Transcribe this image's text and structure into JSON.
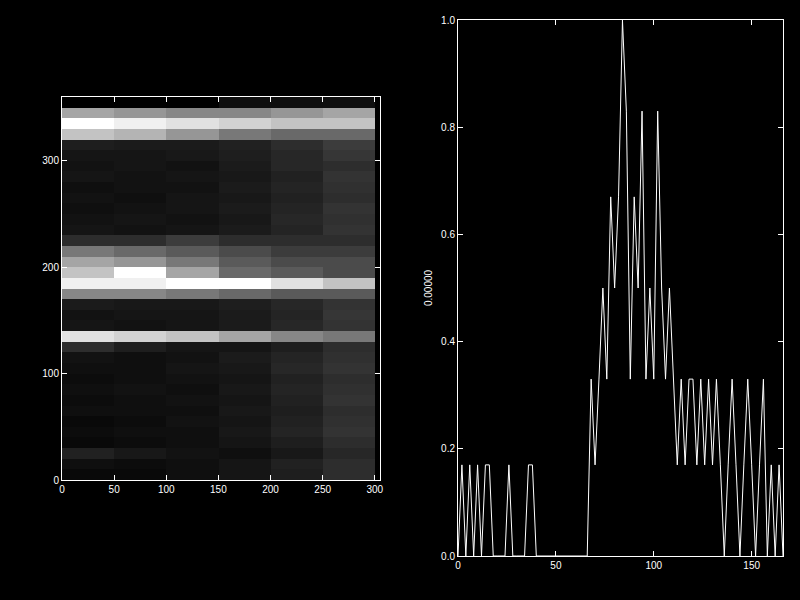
{
  "chart_data": [
    {
      "type": "heatmap",
      "x": [
        25,
        75,
        125,
        175,
        225,
        275
      ],
      "y": [
        5,
        15,
        25,
        35,
        45,
        55,
        65,
        75,
        85,
        95,
        105,
        115,
        125,
        135,
        145,
        155,
        165,
        175,
        185,
        195,
        205,
        215,
        225,
        235,
        245,
        255,
        265,
        275,
        285,
        295,
        305,
        315,
        325,
        335,
        345,
        355
      ],
      "z": [
        [
          0.08,
          0.08,
          0.1,
          0.12,
          0.15,
          0.2
        ],
        [
          0.1,
          0.09,
          0.1,
          0.12,
          0.16,
          0.2
        ],
        [
          0.16,
          0.13,
          0.11,
          0.1,
          0.13,
          0.18
        ],
        [
          0.08,
          0.09,
          0.1,
          0.12,
          0.15,
          0.2
        ],
        [
          0.09,
          0.1,
          0.1,
          0.13,
          0.17,
          0.22
        ],
        [
          0.08,
          0.09,
          0.11,
          0.12,
          0.16,
          0.21
        ],
        [
          0.1,
          0.1,
          0.1,
          0.13,
          0.15,
          0.2
        ],
        [
          0.09,
          0.1,
          0.11,
          0.12,
          0.16,
          0.22
        ],
        [
          0.1,
          0.11,
          0.1,
          0.13,
          0.17,
          0.21
        ],
        [
          0.09,
          0.1,
          0.11,
          0.12,
          0.16,
          0.2
        ],
        [
          0.1,
          0.1,
          0.12,
          0.13,
          0.18,
          0.22
        ],
        [
          0.11,
          0.1,
          0.11,
          0.14,
          0.17,
          0.21
        ],
        [
          0.2,
          0.15,
          0.12,
          0.12,
          0.15,
          0.2
        ],
        [
          0.8,
          0.75,
          0.7,
          0.6,
          0.5,
          0.45
        ],
        [
          0.12,
          0.11,
          0.12,
          0.14,
          0.18,
          0.22
        ],
        [
          0.11,
          0.12,
          0.12,
          0.14,
          0.17,
          0.23
        ],
        [
          0.14,
          0.13,
          0.13,
          0.15,
          0.18,
          0.22
        ],
        [
          0.5,
          0.5,
          0.45,
          0.4,
          0.35,
          0.35
        ],
        [
          0.85,
          0.85,
          0.9,
          0.9,
          0.8,
          0.7
        ],
        [
          0.7,
          0.9,
          0.6,
          0.4,
          0.35,
          0.3
        ],
        [
          0.6,
          0.55,
          0.45,
          0.35,
          0.3,
          0.3
        ],
        [
          0.45,
          0.4,
          0.35,
          0.3,
          0.25,
          0.25
        ],
        [
          0.2,
          0.2,
          0.25,
          0.2,
          0.2,
          0.2
        ],
        [
          0.12,
          0.11,
          0.12,
          0.14,
          0.17,
          0.22
        ],
        [
          0.11,
          0.12,
          0.11,
          0.13,
          0.18,
          0.21
        ],
        [
          0.1,
          0.11,
          0.12,
          0.14,
          0.17,
          0.22
        ],
        [
          0.11,
          0.1,
          0.12,
          0.13,
          0.16,
          0.2
        ],
        [
          0.1,
          0.11,
          0.11,
          0.14,
          0.17,
          0.21
        ],
        [
          0.12,
          0.11,
          0.12,
          0.13,
          0.16,
          0.22
        ],
        [
          0.11,
          0.12,
          0.11,
          0.14,
          0.18,
          0.2
        ],
        [
          0.12,
          0.12,
          0.13,
          0.15,
          0.18,
          0.23
        ],
        [
          0.15,
          0.14,
          0.14,
          0.16,
          0.2,
          0.25
        ],
        [
          0.7,
          0.65,
          0.55,
          0.45,
          0.4,
          0.4
        ],
        [
          0.9,
          0.85,
          0.8,
          0.75,
          0.7,
          0.7
        ],
        [
          0.6,
          0.55,
          0.5,
          0.5,
          0.55,
          0.6
        ],
        [
          0.05,
          0.05,
          0.05,
          0.1,
          0.1,
          0.1
        ]
      ],
      "xlim": [
        0,
        305
      ],
      "ylim": [
        0,
        360
      ],
      "xticks": [
        0,
        50,
        100,
        150,
        200,
        250,
        300
      ],
      "yticks": [
        0,
        100,
        200,
        300
      ]
    },
    {
      "type": "line",
      "y_label": "0.00000",
      "color": "#ffffff",
      "x": [
        0,
        2,
        4,
        6,
        8,
        10,
        12,
        14,
        16,
        18,
        20,
        22,
        24,
        26,
        28,
        30,
        32,
        34,
        36,
        38,
        40,
        42,
        44,
        46,
        48,
        50,
        52,
        54,
        56,
        58,
        60,
        62,
        64,
        66,
        68,
        70,
        72,
        74,
        76,
        78,
        80,
        82,
        84,
        86,
        88,
        90,
        92,
        94,
        96,
        98,
        100,
        102,
        104,
        106,
        108,
        110,
        112,
        114,
        116,
        118,
        120,
        122,
        124,
        126,
        128,
        130,
        132,
        134,
        136,
        138,
        140,
        142,
        144,
        146,
        148,
        150,
        152,
        154,
        156,
        158,
        160,
        162,
        164,
        166
      ],
      "values": [
        0,
        0.17,
        0,
        0.17,
        0,
        0.17,
        0,
        0.17,
        0.17,
        0,
        0,
        0,
        0,
        0.17,
        0,
        0,
        0,
        0,
        0.17,
        0.17,
        0,
        0,
        0,
        0,
        0,
        0,
        0,
        0,
        0,
        0,
        0,
        0,
        0,
        0,
        0.33,
        0.17,
        0.33,
        0.5,
        0.33,
        0.67,
        0.5,
        0.67,
        1,
        0.83,
        0.33,
        0.67,
        0.5,
        0.83,
        0.33,
        0.5,
        0.33,
        0.83,
        0.5,
        0.33,
        0.5,
        0.33,
        0.17,
        0.33,
        0.17,
        0.33,
        0.33,
        0.17,
        0.33,
        0.17,
        0.33,
        0.17,
        0.33,
        0.17,
        0,
        0.17,
        0.33,
        0.17,
        0,
        0.17,
        0.33,
        0.17,
        0,
        0.17,
        0.33,
        0,
        0.17,
        0,
        0.17,
        0
      ],
      "xlim": [
        0,
        166
      ],
      "ylim": [
        0,
        1
      ],
      "xticks": [
        0,
        50,
        100,
        150
      ],
      "yticks": [
        {
          "value": 0,
          "label": "0.0"
        },
        0.2,
        0.4,
        0.6,
        0.8,
        {
          "value": 1,
          "label": "1.0"
        }
      ]
    }
  ]
}
